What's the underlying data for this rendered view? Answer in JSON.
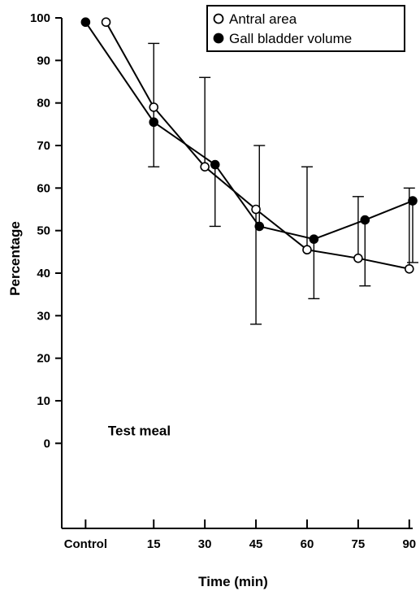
{
  "chart_data": {
    "type": "line",
    "title": "",
    "xlabel": "Time (min)",
    "ylabel": "Percentage",
    "x_ticks": [
      {
        "value": -5,
        "label": "Control"
      },
      {
        "value": 15,
        "label": "15"
      },
      {
        "value": 30,
        "label": "30"
      },
      {
        "value": 45,
        "label": "45"
      },
      {
        "value": 60,
        "label": "60"
      },
      {
        "value": 75,
        "label": "75"
      },
      {
        "value": 90,
        "label": "90"
      }
    ],
    "y_ticks": [
      "0",
      "10",
      "20",
      "30",
      "40",
      "50",
      "60",
      "70",
      "80",
      "90",
      "100"
    ],
    "xlim": [
      -12,
      91
    ],
    "ylim": [
      -20,
      100
    ],
    "grid": false,
    "legend_position": "top-right",
    "series": [
      {
        "name": "Antral area",
        "marker": "open-circle",
        "x": [
          1,
          15,
          30,
          45,
          60,
          75,
          90
        ],
        "y": [
          99,
          79,
          65,
          55,
          45.5,
          43.5,
          41
        ],
        "error_high": [
          null,
          null,
          86,
          null,
          65,
          58,
          60
        ],
        "error_low": [
          null,
          null,
          null,
          28,
          null,
          null,
          null
        ]
      },
      {
        "name": "Gall bladder volume",
        "marker": "filled-circle",
        "x": [
          -5,
          15,
          33,
          46,
          62,
          77,
          91
        ],
        "y": [
          99,
          75.5,
          65.5,
          51,
          48,
          52.5,
          57
        ],
        "error_high": [
          null,
          94,
          null,
          70,
          null,
          null,
          null
        ],
        "error_low": [
          null,
          65,
          51,
          null,
          34,
          37,
          42.5
        ]
      }
    ],
    "annotation": {
      "label": "Test meal",
      "bar_x": [
        3,
        0
      ],
      "bar_value": 0
    },
    "colors": {
      "line": "#000000",
      "fill": "#000000",
      "background": "#ffffff"
    }
  }
}
